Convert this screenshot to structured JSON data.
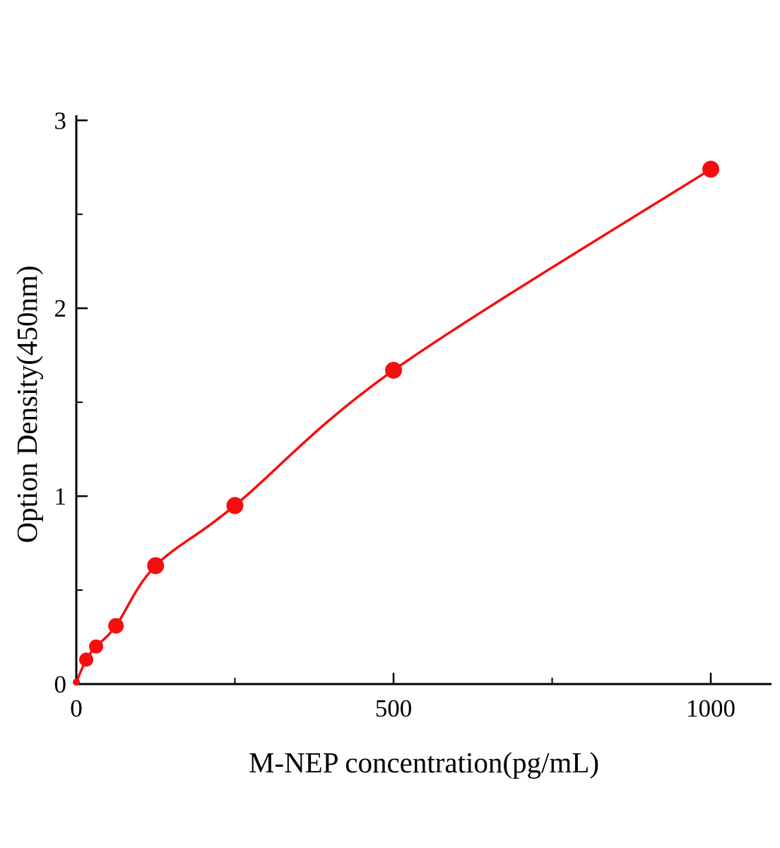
{
  "chart_data": {
    "type": "scatter",
    "title": "",
    "xlabel": "M-NEP concentration(pg/mL)",
    "ylabel": "Option Density(450nm)",
    "xlim": [
      0,
      1095
    ],
    "ylim": [
      0,
      3.02
    ],
    "x_major_ticks": [
      0,
      500,
      1000
    ],
    "x_minor_ticks": [
      250,
      750
    ],
    "y_major_ticks": [
      0,
      1,
      2,
      3
    ],
    "y_minor_ticks": [
      0.5,
      1.5,
      2.5
    ],
    "grid": false,
    "legend": "none",
    "line_color": "#f70d0e",
    "axis_color": "#000000",
    "points": [
      {
        "x": 0,
        "y": 0.01,
        "r": 5
      },
      {
        "x": 15.6,
        "y": 0.13,
        "r": 10
      },
      {
        "x": 31.2,
        "y": 0.2,
        "r": 10
      },
      {
        "x": 62.5,
        "y": 0.31,
        "r": 11
      },
      {
        "x": 125,
        "y": 0.63,
        "r": 12
      },
      {
        "x": 250,
        "y": 0.95,
        "r": 12
      },
      {
        "x": 500,
        "y": 1.67,
        "r": 12
      },
      {
        "x": 1000,
        "y": 2.74,
        "r": 12
      }
    ]
  }
}
